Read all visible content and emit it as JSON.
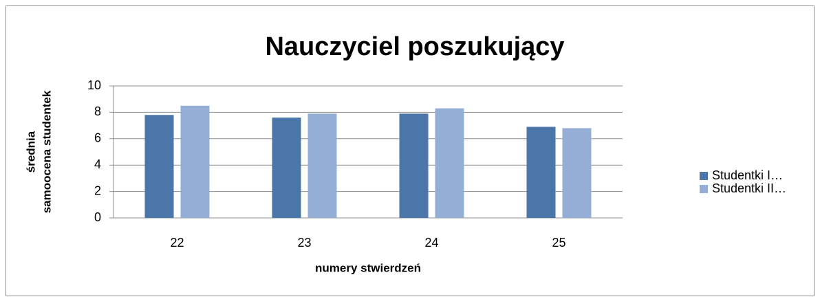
{
  "chart_data": {
    "type": "bar",
    "title": "Nauczyciel poszukujący",
    "x_label": "numery stwierdzeń",
    "y_label": [
      "średnia",
      "samoocena studentek"
    ],
    "categories": [
      "22",
      "23",
      "24",
      "25"
    ],
    "series": [
      {
        "name": "Studentki I…",
        "color": "#4a76aa",
        "values": [
          7.8,
          7.6,
          7.9,
          6.9
        ]
      },
      {
        "name": "Studentki II…",
        "color": "#95aed5",
        "values": [
          8.5,
          7.9,
          8.3,
          6.8
        ]
      }
    ],
    "ylim": [
      0,
      10
    ],
    "yticks": [
      0,
      2,
      4,
      6,
      8,
      10
    ],
    "grid": true,
    "legend": "right"
  }
}
